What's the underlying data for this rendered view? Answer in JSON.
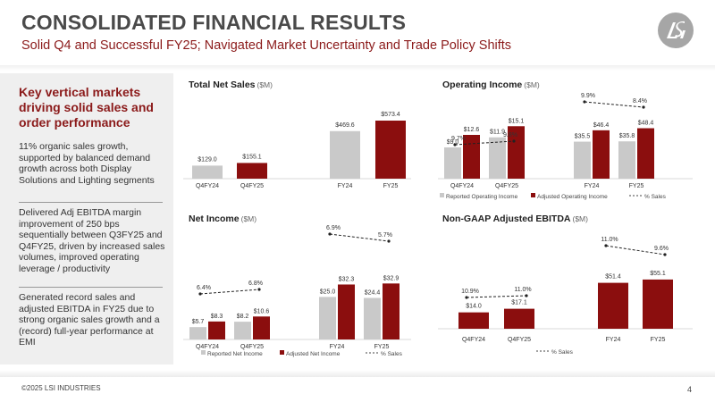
{
  "header": {
    "title": "CONSOLIDATED FINANCIAL RESULTS",
    "subtitle": "Solid Q4 and Successful FY25; Navigated Market Uncertainty and Trade Policy Shifts",
    "logo_text": "LSI"
  },
  "sidebar": {
    "heading": "Key vertical markets driving solid sales and order performance",
    "paragraphs": [
      "11% organic sales growth, supported by balanced demand growth across both Display Solutions and Lighting segments",
      "Delivered Adj EBITDA margin improvement of 250 bps sequentially between Q3FY25 and Q4FY25, driven by increased sales volumes, improved operating leverage / productivity",
      "Generated record sales and adjusted EBITDA in FY25 due to strong organic sales growth and a (record) full-year performance at EMI"
    ]
  },
  "footer": {
    "copyright": "©2025 LSI INDUSTRIES",
    "page_number": "4"
  },
  "colors": {
    "primary": "#8b1a1a",
    "bar_grey": "#c9c9c9",
    "bar_red": "#8b0e0e",
    "sidebar_bg": "#efefef"
  },
  "chart_data": [
    {
      "id": "total-net-sales",
      "type": "bar",
      "title": "Total Net Sales",
      "unit": "($M)",
      "categories": [
        "Q4FY24",
        "Q4FY25",
        "FY24",
        "FY25"
      ],
      "series": [
        {
          "name": "Total Net Sales",
          "values": [
            129.0,
            155.1,
            469.6,
            573.4
          ],
          "labels": [
            "$129.0",
            "$155.1",
            "$469.6",
            "$573.4"
          ],
          "colors": [
            "grey",
            "red",
            "grey",
            "red"
          ]
        }
      ],
      "axis_ranges": {
        "quarter": [
          0,
          600
        ],
        "annual": [
          0,
          600
        ]
      },
      "legend": []
    },
    {
      "id": "operating-income",
      "type": "bar",
      "title": "Operating Income",
      "unit": "($M)",
      "categories": [
        "Q4FY24",
        "Q4FY25",
        "FY24",
        "FY25"
      ],
      "series": [
        {
          "name": "Reported Operating Income",
          "values": [
            9.0,
            11.9,
            35.5,
            35.8
          ],
          "labels": [
            "$9.0",
            "$11.9",
            "$35.5",
            "$35.8"
          ]
        },
        {
          "name": "Adjusted Operating Income",
          "values": [
            12.6,
            15.1,
            46.4,
            48.4
          ],
          "labels": [
            "$12.6",
            "$15.1",
            "$46.4",
            "$48.4"
          ]
        }
      ],
      "pct_series": {
        "name": "% Sales",
        "values": [
          9.7,
          9.8,
          9.9,
          8.4
        ],
        "labels": [
          "9.7%",
          "9.8%",
          "9.9%",
          "8.4%"
        ]
      },
      "axis_ranges": {
        "quarter": [
          0,
          18
        ],
        "annual": [
          0,
          60
        ]
      },
      "legend": [
        "Reported Operating Income",
        "Adjusted Operating Income",
        "% Sales"
      ]
    },
    {
      "id": "net-income",
      "type": "bar",
      "title": "Net Income",
      "unit": "($M)",
      "categories": [
        "Q4FY24",
        "Q4FY25",
        "FY24",
        "FY25"
      ],
      "series": [
        {
          "name": "Reported Net Income",
          "values": [
            5.7,
            8.2,
            25.0,
            24.4
          ],
          "labels": [
            "$5.7",
            "$8.2",
            "$25.0",
            "$24.4"
          ]
        },
        {
          "name": "Adjusted Net Income",
          "values": [
            8.3,
            10.6,
            32.3,
            32.9
          ],
          "labels": [
            "$8.3",
            "$10.6",
            "$32.3",
            "$32.9"
          ]
        }
      ],
      "pct_series": {
        "name": "% Sales",
        "values": [
          6.4,
          6.8,
          6.9,
          5.7
        ],
        "labels": [
          "6.4%",
          "6.8%",
          "6.9%",
          "5.7%"
        ]
      },
      "axis_ranges": {
        "quarter": [
          0,
          33
        ],
        "annual": [
          0,
          42
        ]
      },
      "legend": [
        "Reported Net Income",
        "Adjusted Net Income",
        "% Sales"
      ]
    },
    {
      "id": "non-gaap-adjusted-ebitda",
      "type": "bar",
      "title": "Non-GAAP Adjusted EBITDA",
      "unit": "($M)",
      "categories": [
        "Q4FY24",
        "Q4FY25",
        "FY24",
        "FY25"
      ],
      "series": [
        {
          "name": "Non-GAAP Adjusted EBITDA",
          "values": [
            14.0,
            17.1,
            51.4,
            55.1
          ],
          "labels": [
            "$14.0",
            "$17.1",
            "$51.4",
            "$55.1"
          ],
          "colors": [
            "red",
            "red",
            "red",
            "red"
          ]
        }
      ],
      "pct_series": {
        "name": "% Sales",
        "values": [
          10.9,
          11.0,
          11.0,
          9.6
        ],
        "labels": [
          "10.9%",
          "11.0%",
          "11.0%",
          "9.6%"
        ]
      },
      "axis_ranges": {
        "quarter": [
          0,
          55
        ],
        "annual": [
          0,
          72
        ]
      },
      "legend": [
        "% Sales"
      ]
    }
  ]
}
